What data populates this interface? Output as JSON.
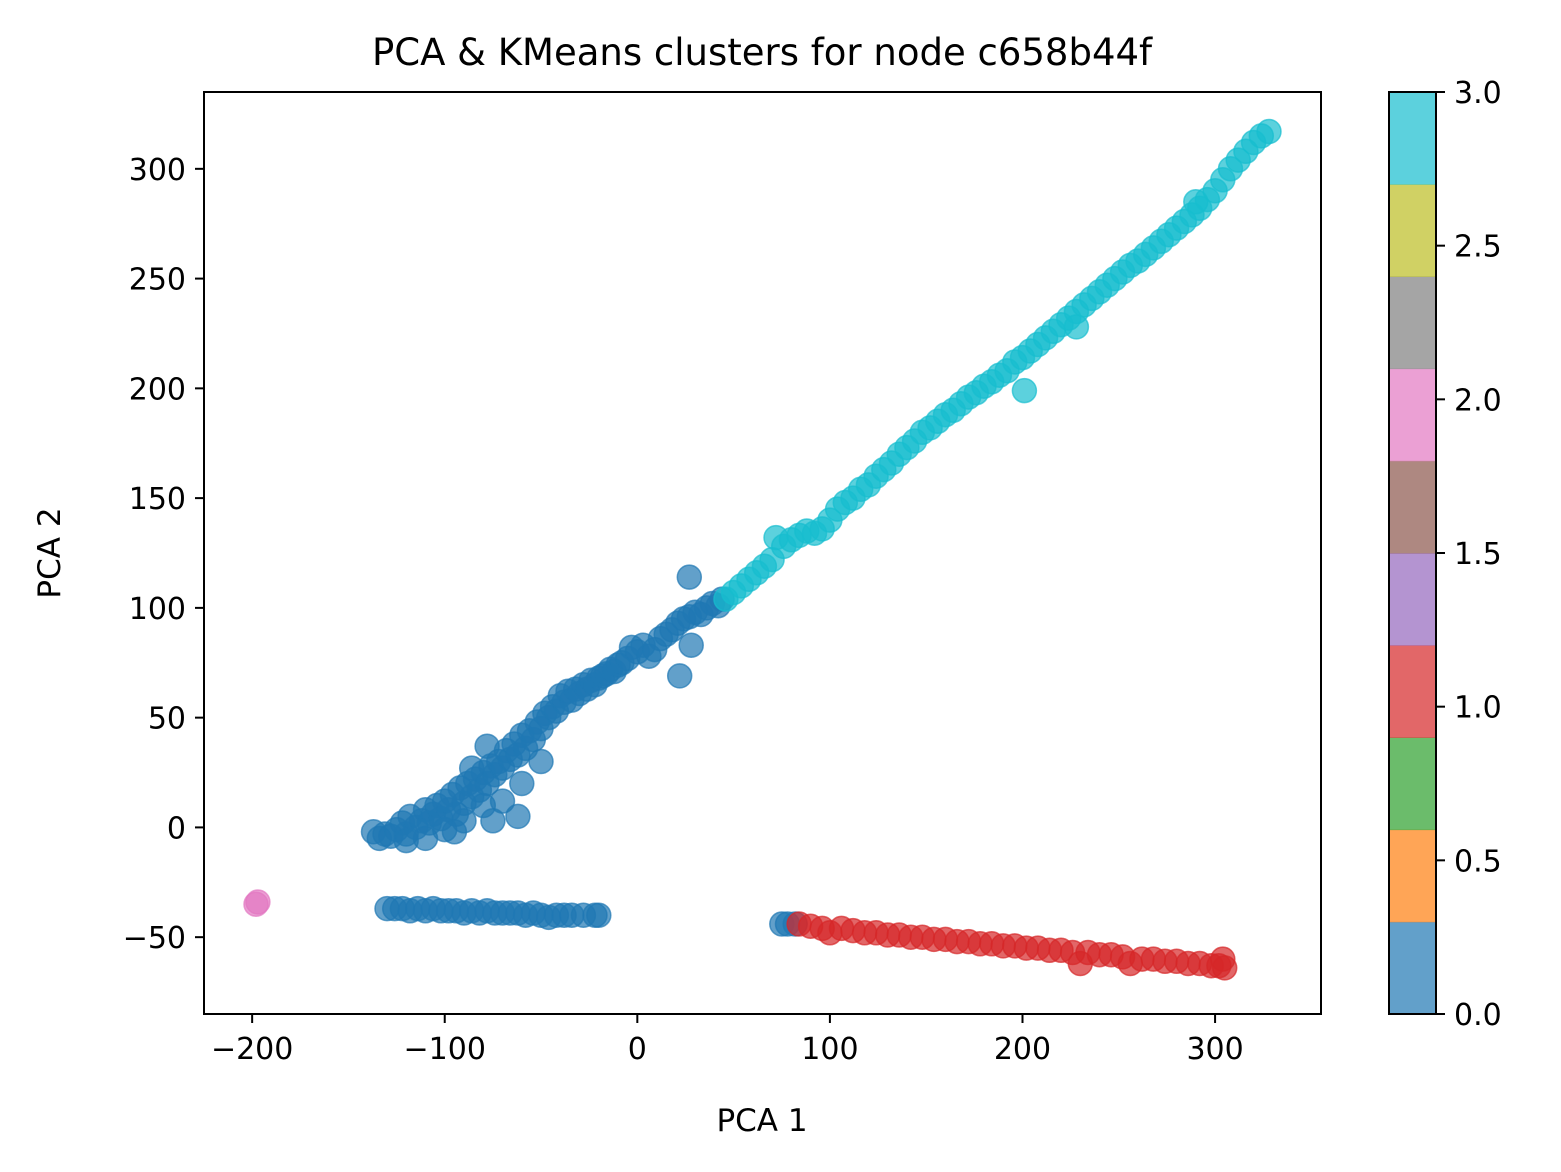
{
  "chart_data": {
    "type": "scatter",
    "title": "PCA & KMeans clusters for node c658b44f",
    "xlabel": "PCA 1",
    "ylabel": "PCA 2",
    "xlim": [
      -225,
      355
    ],
    "ylim": [
      -85,
      335
    ],
    "xticks": [
      -200,
      -100,
      0,
      100,
      200,
      300
    ],
    "xtick_labels": [
      "−200",
      "−100",
      "0",
      "100",
      "200",
      "300"
    ],
    "yticks": [
      -50,
      0,
      50,
      100,
      150,
      200,
      250,
      300
    ],
    "ytick_labels": [
      "−50",
      "0",
      "50",
      "100",
      "150",
      "200",
      "250",
      "300"
    ],
    "grid": false,
    "marker_alpha": 0.7,
    "colorbar": {
      "range": [
        0.0,
        3.0
      ],
      "ticks": [
        0.0,
        0.5,
        1.0,
        1.5,
        2.0,
        2.5,
        3.0
      ],
      "tick_labels": [
        "0.0",
        "0.5",
        "1.0",
        "1.5",
        "2.0",
        "2.5",
        "3.0"
      ],
      "colors": [
        "#1f77b4",
        "#ff7f0e",
        "#2ca02c",
        "#d62728",
        "#9467bd",
        "#8c564b",
        "#e377c2",
        "#7f7f7f",
        "#bcbd22",
        "#17becf"
      ],
      "alpha": 0.7
    },
    "clusters": [
      {
        "cluster": 0,
        "color": "#1f77b4",
        "points": [
          [
            -137,
            -2
          ],
          [
            -134,
            -5
          ],
          [
            -131,
            -3
          ],
          [
            -128,
            -4
          ],
          [
            -125,
            -1
          ],
          [
            -122,
            2
          ],
          [
            -120,
            -3
          ],
          [
            -118,
            5
          ],
          [
            -115,
            0
          ],
          [
            -112,
            3
          ],
          [
            -110,
            8
          ],
          [
            -108,
            2
          ],
          [
            -106,
            6
          ],
          [
            -104,
            10
          ],
          [
            -102,
            4
          ],
          [
            -100,
            12
          ],
          [
            -98,
            8
          ],
          [
            -96,
            15
          ],
          [
            -94,
            6
          ],
          [
            -92,
            18
          ],
          [
            -90,
            11
          ],
          [
            -88,
            20
          ],
          [
            -86,
            14
          ],
          [
            -84,
            22
          ],
          [
            -82,
            17
          ],
          [
            -80,
            25
          ],
          [
            -78,
            20
          ],
          [
            -76,
            28
          ],
          [
            -74,
            24
          ],
          [
            -72,
            30
          ],
          [
            -70,
            27
          ],
          [
            -68,
            35
          ],
          [
            -66,
            31
          ],
          [
            -64,
            38
          ],
          [
            -62,
            33
          ],
          [
            -60,
            42
          ],
          [
            -58,
            36
          ],
          [
            -56,
            44
          ],
          [
            -54,
            40
          ],
          [
            -52,
            48
          ],
          [
            -50,
            45
          ],
          [
            -48,
            52
          ],
          [
            -46,
            50
          ],
          [
            -44,
            55
          ],
          [
            -42,
            53
          ],
          [
            -40,
            60
          ],
          [
            -38,
            57
          ],
          [
            -36,
            62
          ],
          [
            -34,
            58
          ],
          [
            -32,
            63
          ],
          [
            -30,
            61
          ],
          [
            -28,
            65
          ],
          [
            -26,
            63
          ],
          [
            -24,
            67
          ],
          [
            -22,
            65
          ],
          [
            -20,
            68
          ],
          [
            -18,
            69
          ],
          [
            -16,
            70
          ],
          [
            -14,
            72
          ],
          [
            -12,
            71
          ],
          [
            -10,
            74
          ],
          [
            -8,
            75
          ],
          [
            -5,
            77
          ],
          [
            -3,
            82
          ],
          [
            0,
            80
          ],
          [
            3,
            83
          ],
          [
            6,
            78
          ],
          [
            9,
            81
          ],
          [
            12,
            86
          ],
          [
            15,
            88
          ],
          [
            18,
            90
          ],
          [
            21,
            93
          ],
          [
            24,
            95
          ],
          [
            27,
            96
          ],
          [
            30,
            98
          ],
          [
            33,
            97
          ],
          [
            36,
            100
          ],
          [
            39,
            102
          ],
          [
            42,
            101
          ],
          [
            44,
            104
          ],
          [
            27,
            114
          ],
          [
            22,
            69
          ],
          [
            28,
            83
          ],
          [
            -95,
            -2
          ],
          [
            -90,
            3
          ],
          [
            -80,
            10
          ],
          [
            -70,
            12
          ],
          [
            -60,
            20
          ],
          [
            -50,
            30
          ],
          [
            -62,
            5
          ],
          [
            -75,
            3
          ],
          [
            -100,
            -1
          ],
          [
            -110,
            -5
          ],
          [
            -120,
            -6
          ],
          [
            -86,
            27
          ],
          [
            -78,
            37
          ],
          [
            -130,
            -37
          ],
          [
            -126,
            -37
          ],
          [
            -122,
            -37
          ],
          [
            -118,
            -38
          ],
          [
            -114,
            -37
          ],
          [
            -110,
            -38
          ],
          [
            -106,
            -37
          ],
          [
            -102,
            -38
          ],
          [
            -98,
            -38
          ],
          [
            -94,
            -38
          ],
          [
            -90,
            -39
          ],
          [
            -86,
            -38
          ],
          [
            -82,
            -39
          ],
          [
            -78,
            -38
          ],
          [
            -74,
            -39
          ],
          [
            -70,
            -39
          ],
          [
            -66,
            -39
          ],
          [
            -62,
            -39
          ],
          [
            -58,
            -40
          ],
          [
            -54,
            -39
          ],
          [
            -50,
            -40
          ],
          [
            -46,
            -41
          ],
          [
            -42,
            -40
          ],
          [
            -38,
            -40
          ],
          [
            -34,
            -40
          ],
          [
            -28,
            -40
          ],
          [
            -22,
            -40
          ],
          [
            -20,
            -40
          ],
          [
            75,
            -44
          ],
          [
            78,
            -44
          ],
          [
            82,
            -44
          ]
        ]
      },
      {
        "cluster": 1,
        "color": "#d62728",
        "points": [
          [
            84,
            -44
          ],
          [
            90,
            -45
          ],
          [
            96,
            -46
          ],
          [
            100,
            -48
          ],
          [
            106,
            -46
          ],
          [
            112,
            -47
          ],
          [
            118,
            -48
          ],
          [
            124,
            -48
          ],
          [
            130,
            -49
          ],
          [
            136,
            -49
          ],
          [
            142,
            -50
          ],
          [
            148,
            -50
          ],
          [
            154,
            -51
          ],
          [
            160,
            -51
          ],
          [
            166,
            -52
          ],
          [
            172,
            -52
          ],
          [
            178,
            -53
          ],
          [
            184,
            -53
          ],
          [
            190,
            -54
          ],
          [
            196,
            -54
          ],
          [
            202,
            -55
          ],
          [
            208,
            -55
          ],
          [
            214,
            -56
          ],
          [
            220,
            -56
          ],
          [
            226,
            -57
          ],
          [
            230,
            -62
          ],
          [
            234,
            -57
          ],
          [
            240,
            -58
          ],
          [
            246,
            -58
          ],
          [
            252,
            -59
          ],
          [
            256,
            -62
          ],
          [
            262,
            -60
          ],
          [
            268,
            -60
          ],
          [
            274,
            -61
          ],
          [
            280,
            -61
          ],
          [
            286,
            -62
          ],
          [
            292,
            -62
          ],
          [
            298,
            -63
          ],
          [
            302,
            -63
          ],
          [
            304,
            -60
          ],
          [
            305,
            -64
          ]
        ]
      },
      {
        "cluster": 2,
        "color": "#e377c2",
        "points": [
          [
            -198,
            -35
          ],
          [
            -197,
            -34
          ]
        ]
      },
      {
        "cluster": 3,
        "color": "#17becf",
        "points": [
          [
            46,
            104
          ],
          [
            50,
            107
          ],
          [
            54,
            110
          ],
          [
            58,
            113
          ],
          [
            62,
            116
          ],
          [
            66,
            119
          ],
          [
            70,
            122
          ],
          [
            72,
            132
          ],
          [
            76,
            128
          ],
          [
            80,
            131
          ],
          [
            84,
            133
          ],
          [
            88,
            135
          ],
          [
            92,
            134
          ],
          [
            96,
            136
          ],
          [
            100,
            140
          ],
          [
            104,
            145
          ],
          [
            108,
            148
          ],
          [
            112,
            150
          ],
          [
            116,
            154
          ],
          [
            120,
            156
          ],
          [
            124,
            160
          ],
          [
            128,
            163
          ],
          [
            132,
            166
          ],
          [
            136,
            170
          ],
          [
            140,
            173
          ],
          [
            144,
            176
          ],
          [
            148,
            180
          ],
          [
            152,
            182
          ],
          [
            156,
            185
          ],
          [
            160,
            188
          ],
          [
            164,
            190
          ],
          [
            168,
            193
          ],
          [
            172,
            196
          ],
          [
            176,
            198
          ],
          [
            180,
            201
          ],
          [
            184,
            203
          ],
          [
            188,
            206
          ],
          [
            192,
            208
          ],
          [
            196,
            212
          ],
          [
            200,
            214
          ],
          [
            204,
            217
          ],
          [
            208,
            220
          ],
          [
            212,
            223
          ],
          [
            216,
            226
          ],
          [
            220,
            229
          ],
          [
            224,
            232
          ],
          [
            228,
            235
          ],
          [
            232,
            238
          ],
          [
            236,
            241
          ],
          [
            240,
            244
          ],
          [
            244,
            247
          ],
          [
            248,
            250
          ],
          [
            252,
            253
          ],
          [
            256,
            256
          ],
          [
            260,
            258
          ],
          [
            264,
            261
          ],
          [
            268,
            264
          ],
          [
            272,
            267
          ],
          [
            276,
            270
          ],
          [
            280,
            273
          ],
          [
            284,
            276
          ],
          [
            288,
            279
          ],
          [
            292,
            282
          ],
          [
            296,
            286
          ],
          [
            300,
            290
          ],
          [
            304,
            295
          ],
          [
            308,
            300
          ],
          [
            312,
            304
          ],
          [
            316,
            308
          ],
          [
            320,
            312
          ],
          [
            324,
            315
          ],
          [
            328,
            317
          ],
          [
            201,
            199
          ],
          [
            228,
            228
          ],
          [
            290,
            285
          ]
        ]
      }
    ]
  }
}
